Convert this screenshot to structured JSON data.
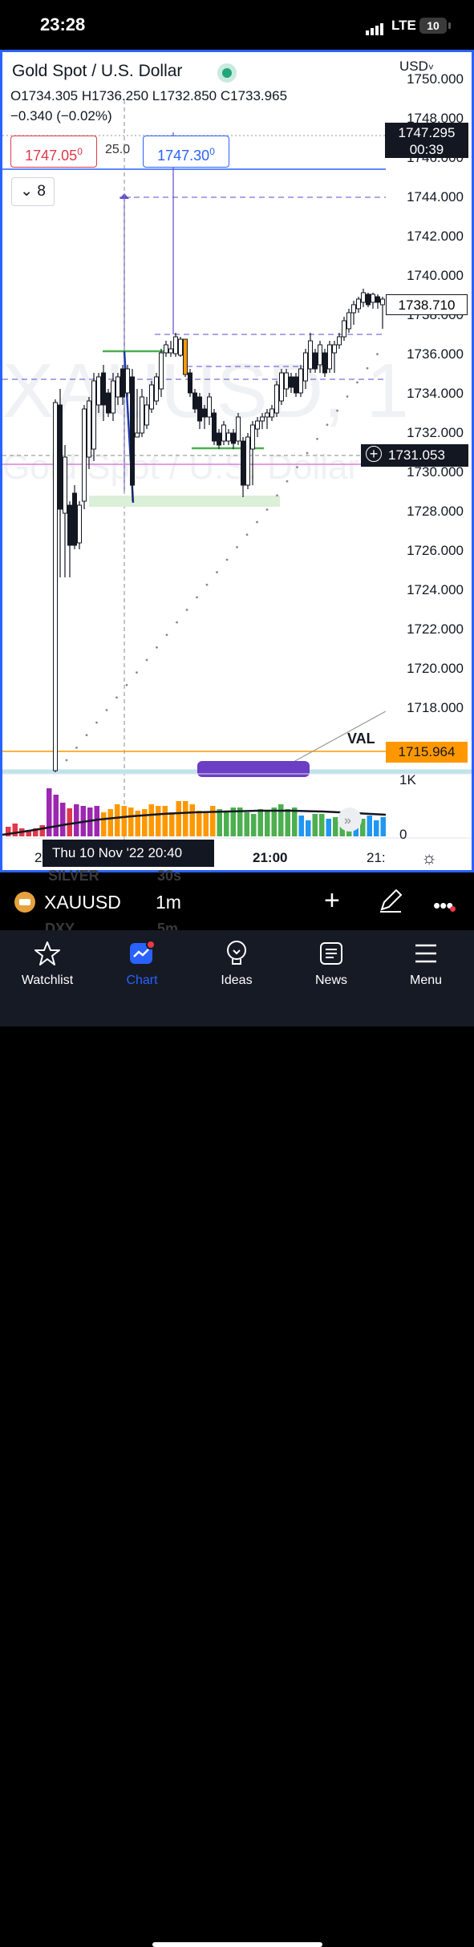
{
  "status_bar": {
    "time": "23:28",
    "network": "LTE",
    "battery": "10"
  },
  "chart": {
    "title": "Gold Spot / U.S. Dollar",
    "ohlc": "O1734.305  H1736.250  L1732.850  C1733.965",
    "change": "−0.340 (−0.02%)",
    "sell_price": "1747.05",
    "sell_price_sup": "0",
    "spread": "25.0",
    "buy_price": "1747.30",
    "buy_price_sup": "0",
    "indicator_collapse_count": "8",
    "currency": "USD",
    "watermark_symbol": "XAUUSD, 1",
    "watermark_name": "Gold Spot / U.S. Dollar",
    "y_ticks": [
      "1750.000",
      "1748.000",
      "1746.000",
      "1744.000",
      "1742.000",
      "1740.000",
      "1738.000",
      "1736.000",
      "1734.000",
      "1732.000",
      "1730.000",
      "1728.000",
      "1726.000",
      "1724.000",
      "1722.000",
      "1720.000",
      "1718.000"
    ],
    "price_tag_value": "1747.295",
    "price_tag_countdown": "00:39",
    "last_price": "1738.710",
    "crosshair_price": "1731.053",
    "val_label": "VAL",
    "val_price": "1715.964",
    "volume_scale_top": "1K",
    "volume_scale_bottom": "0",
    "time_axis_left": "2",
    "time_axis_mid": "21:00",
    "time_axis_right": "21:",
    "crosshair_date": "Thu 10 Nov '22   20:40",
    "colors": {
      "up": "#ffffff",
      "down": "#131722",
      "accent": "#2962ff",
      "highlight": "#ff9800",
      "volume_purple": "#9c27b0",
      "volume_orange": "#ff9800",
      "volume_green": "#4caf50",
      "volume_blue": "#2196f3"
    }
  },
  "symbol_bar": {
    "symbol": "XAUUSD",
    "interval": "1m",
    "ghost_symbol_1": "SILVER",
    "ghost_interval_1": "30s",
    "ghost_symbol_2": "DXY",
    "ghost_interval_2": "5m"
  },
  "nav": [
    {
      "label": "Watchlist",
      "icon": "star-icon"
    },
    {
      "label": "Chart",
      "icon": "chart-icon"
    },
    {
      "label": "Ideas",
      "icon": "lightbulb-icon"
    },
    {
      "label": "News",
      "icon": "news-icon"
    },
    {
      "label": "Menu",
      "icon": "hamburger-icon"
    }
  ]
}
